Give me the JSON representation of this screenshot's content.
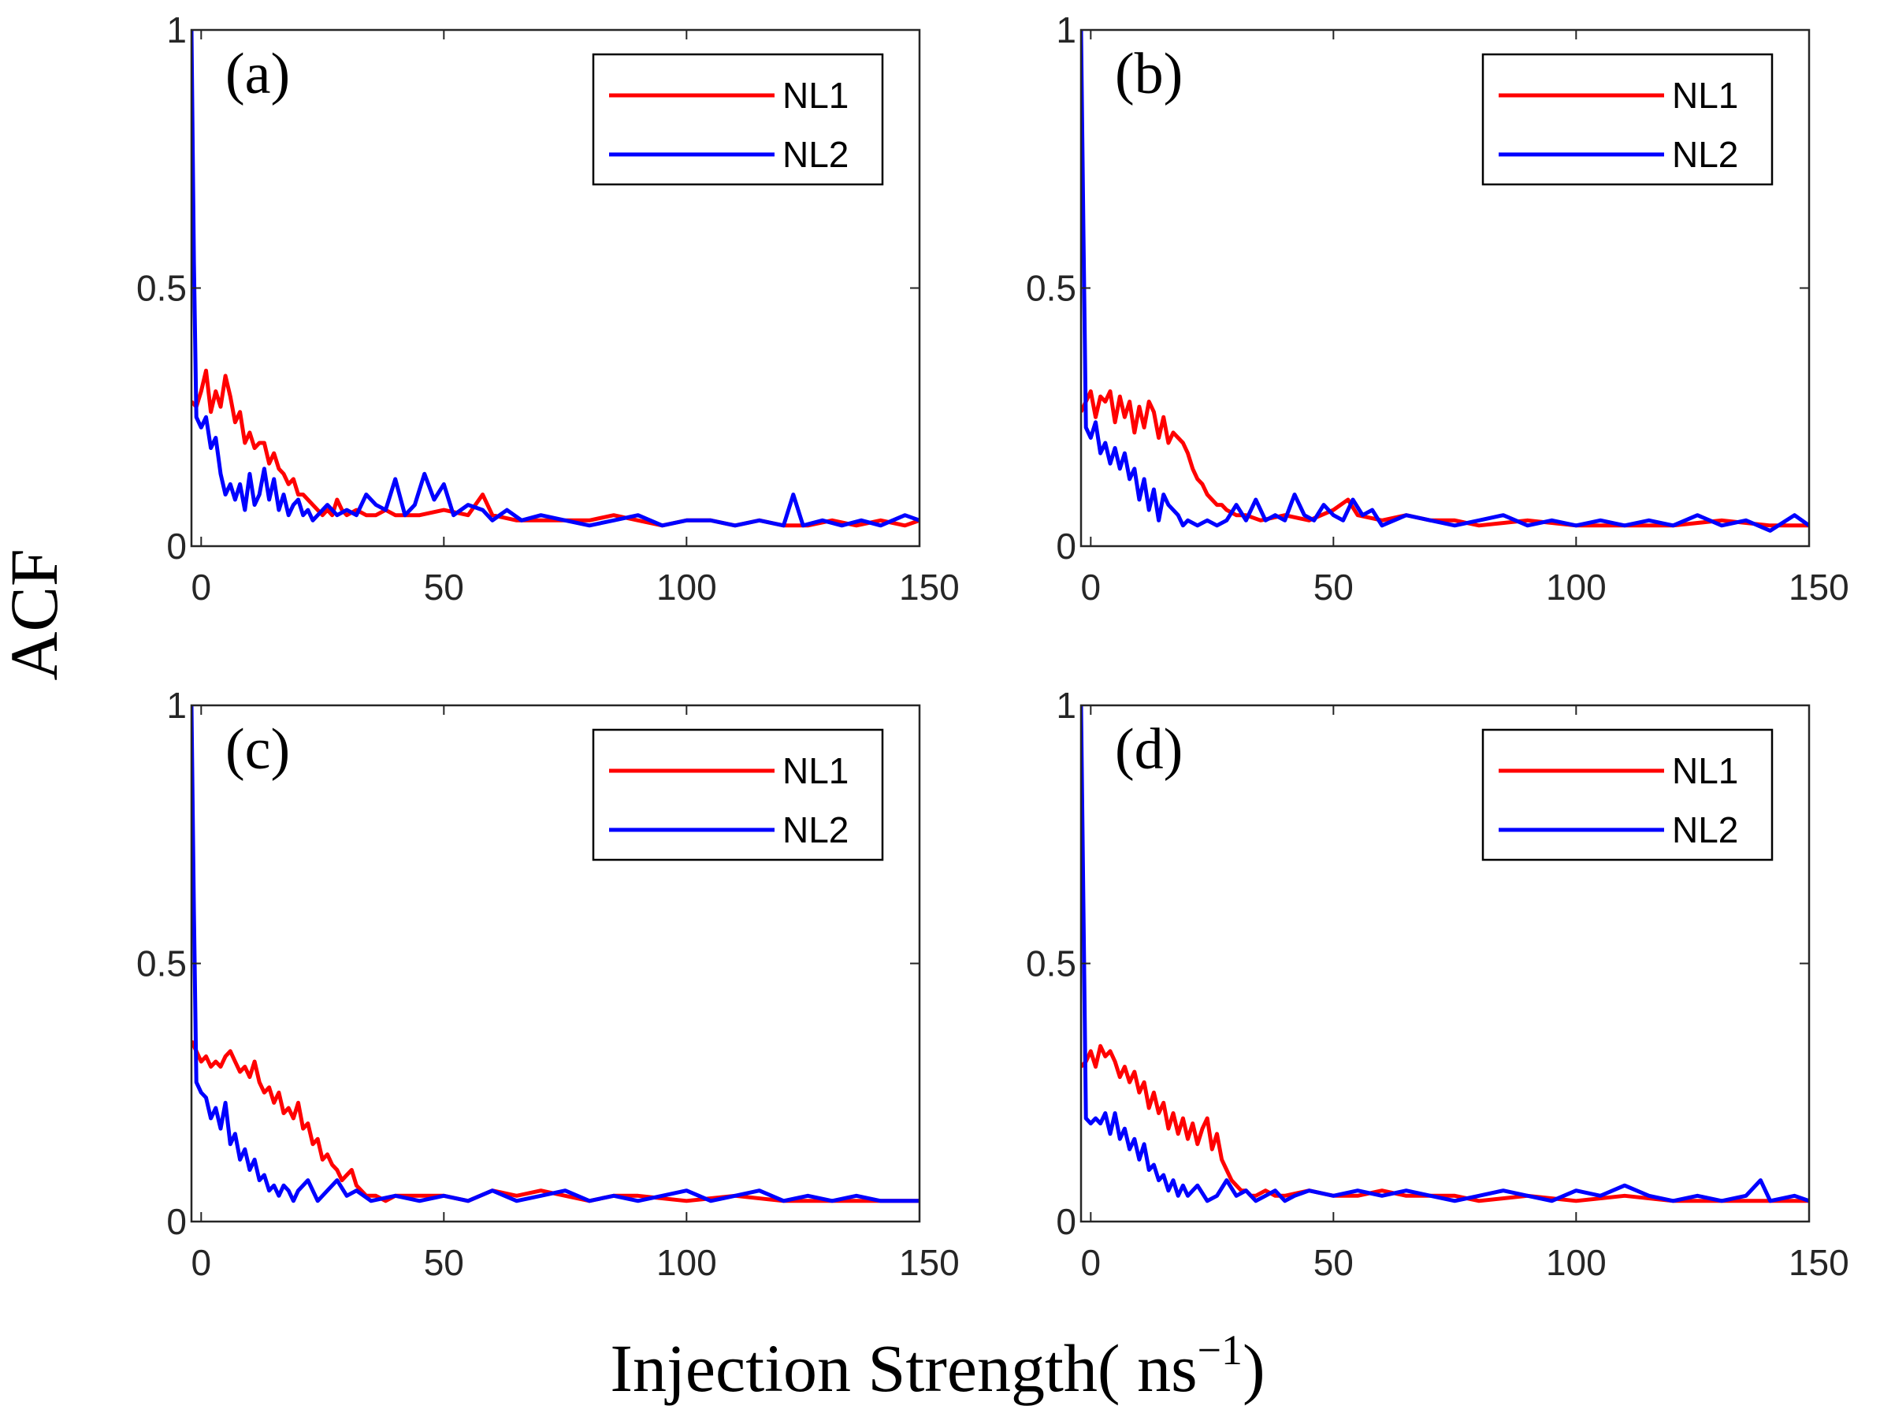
{
  "figure": {
    "ylabel": "ACF",
    "xlabel": "Injection Strength( ns",
    "xlabel_sup": "−1",
    "xlabel_close": ")"
  },
  "colors": {
    "NL1": "#ff0000",
    "NL2": "#0000ff",
    "axis": "#262626"
  },
  "chart_data": [
    {
      "type": "line",
      "panel": "(a)",
      "xlim": [
        -2,
        148
      ],
      "ylim": [
        0,
        1
      ],
      "xticks": [
        0,
        50,
        100,
        150
      ],
      "yticks": [
        0,
        0.5,
        1
      ],
      "xtick_labels": [
        "0",
        "50",
        "100",
        "150"
      ],
      "ytick_labels": [
        "0",
        "0.5",
        "1"
      ],
      "legend": [
        "NL1",
        "NL2"
      ],
      "legend_position": "top-right",
      "series": [
        {
          "name": "NL1",
          "color": "#ff0000",
          "x": [
            -2,
            -1,
            0,
            1,
            2,
            3,
            4,
            5,
            6,
            7,
            8,
            9,
            10,
            11,
            12,
            13,
            14,
            15,
            16,
            17,
            18,
            19,
            20,
            21,
            22,
            23,
            24,
            25,
            26,
            27,
            28,
            29,
            30,
            32,
            34,
            36,
            38,
            40,
            45,
            50,
            55,
            58,
            60,
            65,
            70,
            75,
            80,
            85,
            90,
            95,
            100,
            105,
            110,
            115,
            120,
            125,
            130,
            135,
            140,
            145,
            148
          ],
          "y": [
            0.28,
            0.27,
            0.3,
            0.34,
            0.26,
            0.3,
            0.27,
            0.33,
            0.29,
            0.24,
            0.26,
            0.2,
            0.22,
            0.19,
            0.2,
            0.2,
            0.16,
            0.18,
            0.15,
            0.14,
            0.12,
            0.13,
            0.1,
            0.1,
            0.09,
            0.08,
            0.07,
            0.06,
            0.07,
            0.06,
            0.09,
            0.07,
            0.06,
            0.07,
            0.06,
            0.06,
            0.07,
            0.06,
            0.06,
            0.07,
            0.06,
            0.1,
            0.06,
            0.05,
            0.05,
            0.05,
            0.05,
            0.06,
            0.05,
            0.04,
            0.05,
            0.05,
            0.04,
            0.05,
            0.04,
            0.04,
            0.05,
            0.04,
            0.05,
            0.04,
            0.05
          ]
        },
        {
          "name": "NL2",
          "color": "#0000ff",
          "x": [
            -2,
            -1.5,
            -1,
            0,
            1,
            2,
            3,
            4,
            5,
            6,
            7,
            8,
            9,
            10,
            11,
            12,
            13,
            14,
            15,
            16,
            17,
            18,
            19,
            20,
            21,
            22,
            23,
            24,
            26,
            28,
            30,
            32,
            34,
            36,
            38,
            40,
            42,
            44,
            46,
            48,
            50,
            52,
            55,
            58,
            60,
            63,
            66,
            70,
            75,
            80,
            85,
            90,
            95,
            100,
            105,
            110,
            115,
            120,
            122,
            124,
            128,
            132,
            136,
            140,
            145,
            148
          ],
          "y": [
            1.0,
            0.55,
            0.25,
            0.23,
            0.25,
            0.19,
            0.21,
            0.14,
            0.1,
            0.12,
            0.09,
            0.12,
            0.07,
            0.14,
            0.08,
            0.1,
            0.15,
            0.09,
            0.13,
            0.07,
            0.1,
            0.06,
            0.08,
            0.09,
            0.06,
            0.07,
            0.05,
            0.06,
            0.08,
            0.06,
            0.07,
            0.06,
            0.1,
            0.08,
            0.07,
            0.13,
            0.06,
            0.08,
            0.14,
            0.09,
            0.12,
            0.06,
            0.08,
            0.07,
            0.05,
            0.07,
            0.05,
            0.06,
            0.05,
            0.04,
            0.05,
            0.06,
            0.04,
            0.05,
            0.05,
            0.04,
            0.05,
            0.04,
            0.1,
            0.04,
            0.05,
            0.04,
            0.05,
            0.04,
            0.06,
            0.05
          ]
        }
      ]
    },
    {
      "type": "line",
      "panel": "(b)",
      "xlim": [
        -2,
        148
      ],
      "ylim": [
        0,
        1
      ],
      "xticks": [
        0,
        50,
        100,
        150
      ],
      "yticks": [
        0,
        0.5,
        1
      ],
      "xtick_labels": [
        "0",
        "50",
        "100",
        "150"
      ],
      "ytick_labels": [
        "0",
        "0.5",
        "1"
      ],
      "legend": [
        "NL1",
        "NL2"
      ],
      "legend_position": "top-right",
      "series": [
        {
          "name": "NL1",
          "color": "#ff0000",
          "x": [
            -2,
            -1,
            0,
            1,
            2,
            3,
            4,
            5,
            6,
            7,
            8,
            9,
            10,
            11,
            12,
            13,
            14,
            15,
            16,
            17,
            18,
            19,
            20,
            21,
            22,
            23,
            24,
            25,
            26,
            27,
            28,
            30,
            32,
            35,
            40,
            45,
            50,
            53,
            55,
            60,
            65,
            70,
            75,
            80,
            90,
            100,
            110,
            120,
            130,
            140,
            148
          ],
          "y": [
            0.26,
            0.28,
            0.3,
            0.25,
            0.29,
            0.28,
            0.3,
            0.24,
            0.29,
            0.25,
            0.28,
            0.22,
            0.27,
            0.23,
            0.28,
            0.26,
            0.21,
            0.25,
            0.2,
            0.22,
            0.21,
            0.2,
            0.18,
            0.15,
            0.13,
            0.12,
            0.1,
            0.09,
            0.08,
            0.08,
            0.07,
            0.06,
            0.06,
            0.05,
            0.06,
            0.05,
            0.07,
            0.09,
            0.06,
            0.05,
            0.06,
            0.05,
            0.05,
            0.04,
            0.05,
            0.04,
            0.04,
            0.04,
            0.05,
            0.04,
            0.04
          ]
        },
        {
          "name": "NL2",
          "color": "#0000ff",
          "x": [
            -2,
            -1.5,
            -1,
            0,
            1,
            2,
            3,
            4,
            5,
            6,
            7,
            8,
            9,
            10,
            11,
            12,
            13,
            14,
            15,
            16,
            17,
            18,
            19,
            20,
            22,
            24,
            26,
            28,
            30,
            32,
            34,
            36,
            38,
            40,
            42,
            44,
            46,
            48,
            50,
            52,
            54,
            56,
            58,
            60,
            65,
            70,
            75,
            80,
            85,
            90,
            95,
            100,
            105,
            110,
            115,
            120,
            125,
            130,
            135,
            140,
            145,
            148
          ],
          "y": [
            1.0,
            0.6,
            0.23,
            0.21,
            0.24,
            0.18,
            0.2,
            0.16,
            0.19,
            0.15,
            0.18,
            0.13,
            0.15,
            0.09,
            0.13,
            0.07,
            0.11,
            0.05,
            0.1,
            0.08,
            0.07,
            0.06,
            0.04,
            0.05,
            0.04,
            0.05,
            0.04,
            0.05,
            0.08,
            0.05,
            0.09,
            0.05,
            0.06,
            0.05,
            0.1,
            0.06,
            0.05,
            0.08,
            0.06,
            0.05,
            0.09,
            0.06,
            0.07,
            0.04,
            0.06,
            0.05,
            0.04,
            0.05,
            0.06,
            0.04,
            0.05,
            0.04,
            0.05,
            0.04,
            0.05,
            0.04,
            0.06,
            0.04,
            0.05,
            0.03,
            0.06,
            0.04
          ]
        }
      ]
    },
    {
      "type": "line",
      "panel": "(c)",
      "xlim": [
        -2,
        148
      ],
      "ylim": [
        0,
        1
      ],
      "xticks": [
        0,
        50,
        100,
        150
      ],
      "yticks": [
        0,
        0.5,
        1
      ],
      "xtick_labels": [
        "0",
        "50",
        "100",
        "150"
      ],
      "ytick_labels": [
        "0",
        "0.5",
        "1"
      ],
      "legend": [
        "NL1",
        "NL2"
      ],
      "legend_position": "top-right",
      "series": [
        {
          "name": "NL1",
          "color": "#ff0000",
          "x": [
            -2,
            -1,
            0,
            1,
            2,
            3,
            4,
            5,
            6,
            7,
            8,
            9,
            10,
            11,
            12,
            13,
            14,
            15,
            16,
            17,
            18,
            19,
            20,
            21,
            22,
            23,
            24,
            25,
            26,
            27,
            28,
            29,
            30,
            31,
            32,
            33,
            34,
            35,
            36,
            38,
            40,
            45,
            50,
            55,
            60,
            65,
            70,
            75,
            80,
            85,
            90,
            100,
            110,
            120,
            130,
            140,
            148
          ],
          "y": [
            0.35,
            0.33,
            0.31,
            0.32,
            0.3,
            0.31,
            0.3,
            0.32,
            0.33,
            0.31,
            0.29,
            0.3,
            0.28,
            0.31,
            0.27,
            0.25,
            0.26,
            0.23,
            0.25,
            0.21,
            0.22,
            0.2,
            0.23,
            0.18,
            0.19,
            0.15,
            0.16,
            0.12,
            0.13,
            0.11,
            0.1,
            0.08,
            0.09,
            0.1,
            0.07,
            0.06,
            0.05,
            0.05,
            0.05,
            0.04,
            0.05,
            0.05,
            0.05,
            0.04,
            0.06,
            0.05,
            0.06,
            0.05,
            0.04,
            0.05,
            0.05,
            0.04,
            0.05,
            0.04,
            0.04,
            0.04,
            0.04
          ]
        },
        {
          "name": "NL2",
          "color": "#0000ff",
          "x": [
            -2,
            -1.5,
            -1,
            0,
            1,
            2,
            3,
            4,
            5,
            6,
            7,
            8,
            9,
            10,
            11,
            12,
            13,
            14,
            15,
            16,
            17,
            18,
            19,
            20,
            22,
            24,
            26,
            28,
            30,
            32,
            35,
            40,
            45,
            50,
            55,
            60,
            65,
            70,
            75,
            80,
            85,
            90,
            95,
            100,
            105,
            110,
            115,
            120,
            125,
            130,
            135,
            140,
            145,
            148
          ],
          "y": [
            1.0,
            0.6,
            0.27,
            0.25,
            0.24,
            0.2,
            0.22,
            0.18,
            0.23,
            0.15,
            0.17,
            0.12,
            0.14,
            0.1,
            0.12,
            0.08,
            0.09,
            0.06,
            0.07,
            0.05,
            0.07,
            0.06,
            0.04,
            0.06,
            0.08,
            0.04,
            0.06,
            0.08,
            0.05,
            0.06,
            0.04,
            0.05,
            0.04,
            0.05,
            0.04,
            0.06,
            0.04,
            0.05,
            0.06,
            0.04,
            0.05,
            0.04,
            0.05,
            0.06,
            0.04,
            0.05,
            0.06,
            0.04,
            0.05,
            0.04,
            0.05,
            0.04,
            0.04,
            0.04
          ]
        }
      ]
    },
    {
      "type": "line",
      "panel": "(d)",
      "xlim": [
        -2,
        148
      ],
      "ylim": [
        0,
        1
      ],
      "xticks": [
        0,
        50,
        100,
        150
      ],
      "yticks": [
        0,
        0.5,
        1
      ],
      "xtick_labels": [
        "0",
        "50",
        "100",
        "150"
      ],
      "ytick_labels": [
        "0",
        "0.5",
        "1"
      ],
      "legend": [
        "NL1",
        "NL2"
      ],
      "legend_position": "top-right",
      "series": [
        {
          "name": "NL1",
          "color": "#ff0000",
          "x": [
            -2,
            -1,
            0,
            1,
            2,
            3,
            4,
            5,
            6,
            7,
            8,
            9,
            10,
            11,
            12,
            13,
            14,
            15,
            16,
            17,
            18,
            19,
            20,
            21,
            22,
            23,
            24,
            25,
            26,
            27,
            28,
            29,
            30,
            31,
            32,
            33,
            34,
            36,
            38,
            40,
            45,
            50,
            55,
            60,
            65,
            70,
            75,
            80,
            90,
            100,
            110,
            120,
            130,
            140,
            148
          ],
          "y": [
            0.3,
            0.31,
            0.33,
            0.3,
            0.34,
            0.32,
            0.33,
            0.31,
            0.28,
            0.3,
            0.27,
            0.29,
            0.25,
            0.27,
            0.22,
            0.25,
            0.21,
            0.23,
            0.18,
            0.21,
            0.17,
            0.2,
            0.16,
            0.19,
            0.15,
            0.18,
            0.2,
            0.14,
            0.17,
            0.12,
            0.1,
            0.08,
            0.07,
            0.06,
            0.06,
            0.05,
            0.05,
            0.06,
            0.05,
            0.05,
            0.06,
            0.05,
            0.05,
            0.06,
            0.05,
            0.05,
            0.05,
            0.04,
            0.05,
            0.04,
            0.05,
            0.04,
            0.04,
            0.04,
            0.04
          ]
        },
        {
          "name": "NL2",
          "color": "#0000ff",
          "x": [
            -2,
            -1.5,
            -1,
            0,
            1,
            2,
            3,
            4,
            5,
            6,
            7,
            8,
            9,
            10,
            11,
            12,
            13,
            14,
            15,
            16,
            17,
            18,
            19,
            20,
            22,
            24,
            26,
            28,
            30,
            32,
            34,
            36,
            38,
            40,
            42,
            45,
            50,
            55,
            60,
            65,
            70,
            75,
            80,
            85,
            90,
            95,
            100,
            105,
            110,
            115,
            120,
            125,
            130,
            135,
            138,
            140,
            145,
            148
          ],
          "y": [
            1.0,
            0.6,
            0.2,
            0.19,
            0.2,
            0.19,
            0.21,
            0.17,
            0.21,
            0.16,
            0.18,
            0.14,
            0.16,
            0.12,
            0.15,
            0.1,
            0.11,
            0.08,
            0.09,
            0.06,
            0.08,
            0.05,
            0.07,
            0.05,
            0.07,
            0.04,
            0.05,
            0.08,
            0.05,
            0.06,
            0.04,
            0.05,
            0.06,
            0.04,
            0.05,
            0.06,
            0.05,
            0.06,
            0.05,
            0.06,
            0.05,
            0.04,
            0.05,
            0.06,
            0.05,
            0.04,
            0.06,
            0.05,
            0.07,
            0.05,
            0.04,
            0.05,
            0.04,
            0.05,
            0.08,
            0.04,
            0.05,
            0.04
          ]
        }
      ]
    }
  ]
}
